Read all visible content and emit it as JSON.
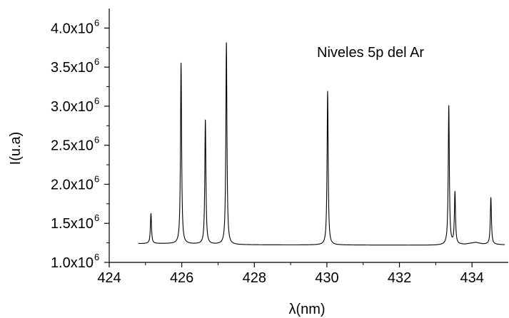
{
  "chart_data": {
    "type": "line",
    "annotation": "Niveles 5p del Ar",
    "xlabel": "λ(nm)",
    "ylabel": "I(u.a)",
    "xlim": [
      424,
      435
    ],
    "ylim": [
      1000000,
      4250000
    ],
    "x_ticks": [
      424,
      426,
      428,
      430,
      432,
      434
    ],
    "x_tick_labels": [
      "424",
      "426",
      "428",
      "430",
      "432",
      "434"
    ],
    "y_ticks": [
      1000000,
      1500000,
      2000000,
      2500000,
      3000000,
      3500000,
      4000000
    ],
    "y_tick_labels": [
      {
        "mantissa": "1.0x10",
        "exp": "6"
      },
      {
        "mantissa": "1.5x10",
        "exp": "6"
      },
      {
        "mantissa": "2.0x10",
        "exp": "6"
      },
      {
        "mantissa": "2.5x10",
        "exp": "6"
      },
      {
        "mantissa": "3.0x10",
        "exp": "6"
      },
      {
        "mantissa": "3.5x10",
        "exp": "6"
      },
      {
        "mantissa": "4.0x10",
        "exp": "6"
      }
    ],
    "grid": false,
    "line_color": "#000000",
    "series": [
      {
        "x_range": [
          424.8,
          434.9
        ],
        "baseline": [
          {
            "x": 424.8,
            "y": 1240000
          },
          {
            "x": 425.5,
            "y": 1240000
          },
          {
            "x": 427.5,
            "y": 1225000
          },
          {
            "x": 433.0,
            "y": 1220000
          },
          {
            "x": 433.8,
            "y": 1230000
          },
          {
            "x": 434.1,
            "y": 1255000
          },
          {
            "x": 434.3,
            "y": 1235000
          },
          {
            "x": 434.9,
            "y": 1225000
          }
        ],
        "peaks": [
          {
            "x": 425.15,
            "y": 1625000
          },
          {
            "x": 425.98,
            "y": 3550000
          },
          {
            "x": 426.65,
            "y": 2820000
          },
          {
            "x": 427.23,
            "y": 3810000
          },
          {
            "x": 430.02,
            "y": 3190000
          },
          {
            "x": 433.36,
            "y": 3000000
          },
          {
            "x": 433.53,
            "y": 1890000
          },
          {
            "x": 434.52,
            "y": 1830000
          }
        ]
      }
    ]
  }
}
